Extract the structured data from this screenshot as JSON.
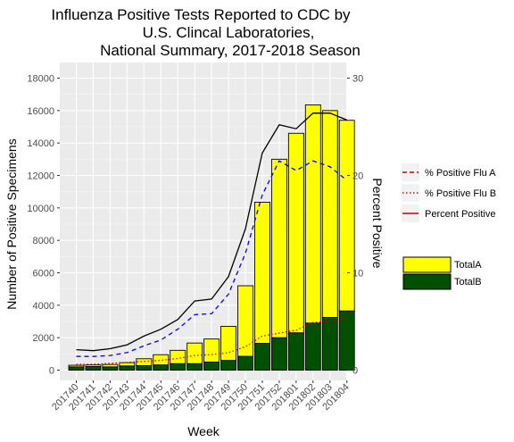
{
  "chart_data": {
    "type": "bar",
    "title_lines": [
      "Influenza Positive Tests Reported to CDC by",
      "U.S. Clincal Laboratories,",
      "National Summary, 2017-2018 Season"
    ],
    "xlabel": "Week",
    "ylabel": "Number of Positive Specimens",
    "y2label": "Percent Positive",
    "categories": [
      "201740",
      "201741",
      "201742",
      "201743",
      "201744",
      "201745",
      "201746",
      "201747",
      "201748",
      "201749",
      "201750",
      "201751",
      "201752",
      "201801",
      "201802",
      "201803",
      "201804"
    ],
    "ylim": [
      0,
      18000
    ],
    "yticks": [
      0,
      2000,
      4000,
      6000,
      8000,
      10000,
      12000,
      14000,
      16000,
      18000
    ],
    "y2lim": [
      0,
      30
    ],
    "y2ticks": [
      0,
      10,
      20,
      30
    ],
    "grid": true,
    "bar_series": [
      {
        "name": "TotalA",
        "color": "#ffff00",
        "values": [
          100,
          100,
          150,
          200,
          420,
          630,
          820,
          1270,
          1420,
          2100,
          4350,
          8700,
          11000,
          12300,
          13450,
          12750,
          11750
        ]
      },
      {
        "name": "TotalB",
        "color": "#005000",
        "values": [
          200,
          220,
          200,
          260,
          280,
          320,
          400,
          400,
          500,
          600,
          850,
          1650,
          2000,
          2300,
          2900,
          3250,
          3650
        ]
      }
    ],
    "line_series": [
      {
        "name": "% Positive Flu A",
        "color": "#0000ff",
        "dash": "5,4",
        "values": [
          1.4,
          1.4,
          1.5,
          1.8,
          2.5,
          3.1,
          4.2,
          5.7,
          5.8,
          7.8,
          12.0,
          18.0,
          21.5,
          20.5,
          21.5,
          20.9,
          19.5
        ]
      },
      {
        "name": "% Positive Flu B",
        "color": "#cc0000",
        "dash": "1.5,2.5",
        "values": [
          0.6,
          0.6,
          0.7,
          0.8,
          0.9,
          1.0,
          1.2,
          1.5,
          1.6,
          1.8,
          2.4,
          3.5,
          3.8,
          4.1,
          4.9,
          5.0,
          5.4
        ]
      },
      {
        "name": "Percent Positive",
        "color": "#000000",
        "dash": "",
        "values": [
          2.1,
          2.0,
          2.2,
          2.6,
          3.5,
          4.2,
          5.2,
          7.1,
          7.3,
          9.6,
          14.5,
          22.3,
          25.2,
          24.8,
          26.4,
          26.4,
          25.7
        ]
      }
    ],
    "line_legend": [
      {
        "label": "% Positive Flu A",
        "color": "#cc0000",
        "dash": "5,3"
      },
      {
        "label": "% Positive Flu B",
        "color": "#cc0000",
        "dash": "1.5,2.5"
      },
      {
        "label": "Percent Positive",
        "color": "#cc0000",
        "dash": ""
      }
    ],
    "bar_legend": [
      {
        "label": "TotalA",
        "color": "#ffff00"
      },
      {
        "label": "TotalB",
        "color": "#005000"
      }
    ],
    "legend_position": "right"
  }
}
